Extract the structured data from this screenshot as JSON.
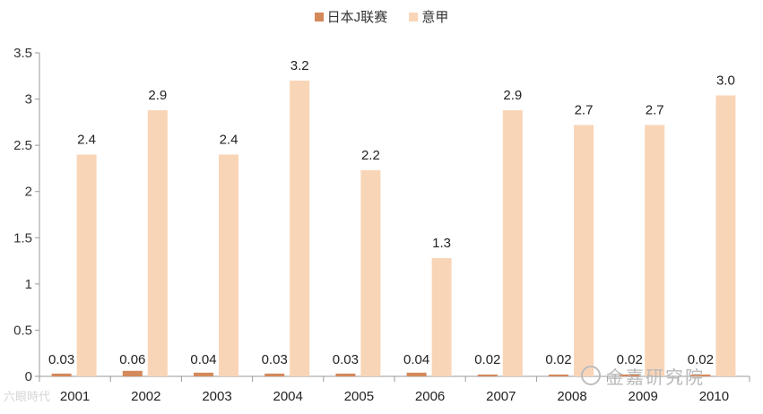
{
  "legend": {
    "series_a": "日本J联赛",
    "series_b": "意甲"
  },
  "colors": {
    "series_a": "#d4895a",
    "series_b": "#f9d5b7",
    "axis": "#9a9a9a"
  },
  "watermarks": {
    "left": "六眼時代",
    "right": "金嘉研究院"
  },
  "chart_data": {
    "type": "bar",
    "categories": [
      "2001",
      "2002",
      "2003",
      "2004",
      "2005",
      "2006",
      "2007",
      "2008",
      "2009",
      "2010"
    ],
    "series": [
      {
        "name": "日本J联赛",
        "values": [
          0.03,
          0.06,
          0.04,
          0.03,
          0.03,
          0.04,
          0.02,
          0.02,
          0.02,
          0.02
        ],
        "labels": [
          "0.03",
          "0.06",
          "0.04",
          "0.03",
          "0.03",
          "0.04",
          "0.02",
          "0.02",
          "0.02",
          "0.02"
        ]
      },
      {
        "name": "意甲",
        "values": [
          2.4,
          2.88,
          2.4,
          3.2,
          2.23,
          1.28,
          2.88,
          2.72,
          2.72,
          3.04
        ],
        "labels": [
          "2.4",
          "2.9",
          "2.4",
          "3.2",
          "2.2",
          "1.3",
          "2.9",
          "2.7",
          "2.7",
          "3.0"
        ]
      }
    ],
    "ylim": [
      0,
      3.5
    ],
    "yticks": [
      "0",
      "0.5",
      "1",
      "1.5",
      "2",
      "2.5",
      "3",
      "3.5"
    ],
    "grid": false,
    "legend_position": "top"
  }
}
